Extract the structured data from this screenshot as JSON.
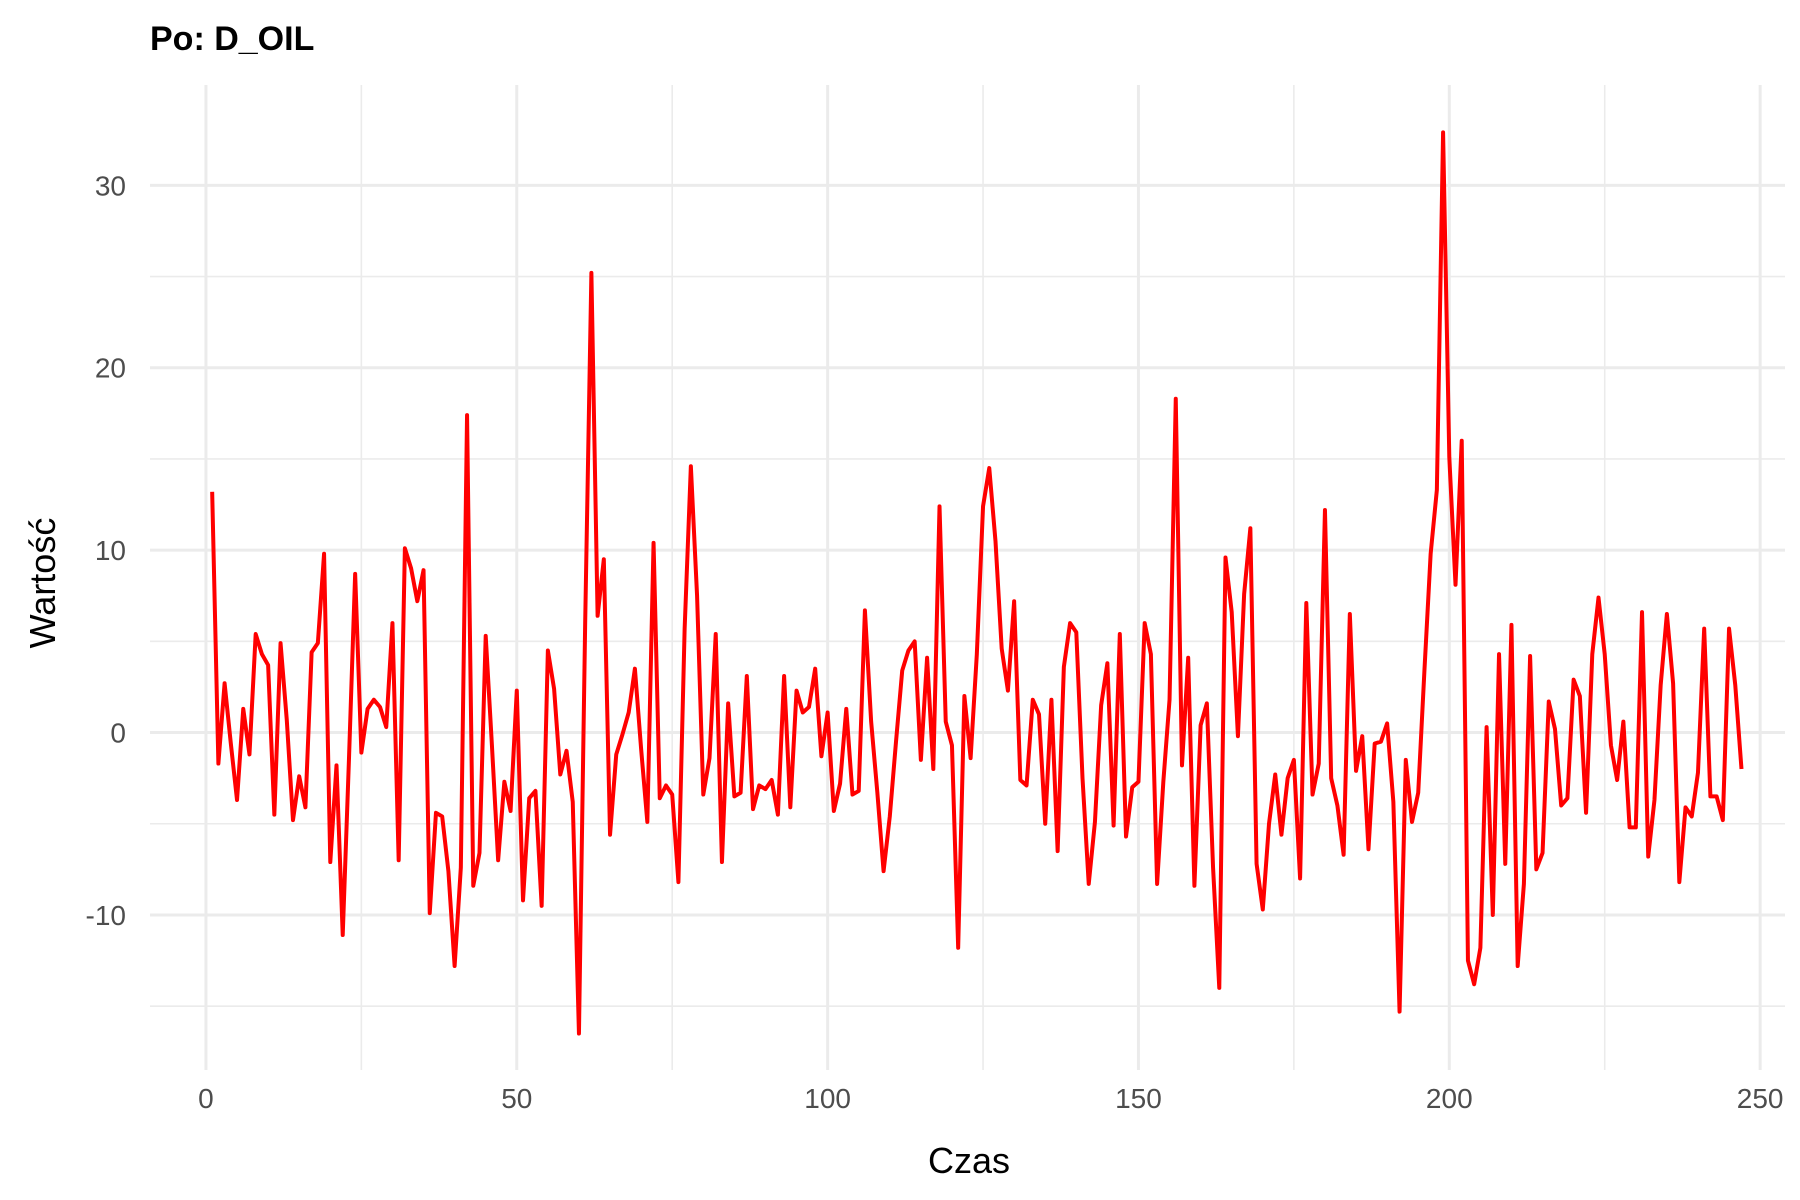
{
  "chart_data": {
    "type": "line",
    "title": "Po: D_OIL",
    "xlabel": "Czas",
    "ylabel": "Wartość",
    "xlim": [
      -9,
      254
    ],
    "ylim": [
      -18.5,
      35.5
    ],
    "x_ticks": [
      0,
      50,
      100,
      150,
      200,
      250
    ],
    "x_tick_labels": [
      "0",
      "50",
      "100",
      "150",
      "200",
      "250"
    ],
    "x_minor_ticks": [
      25,
      75,
      125,
      175,
      225
    ],
    "y_ticks": [
      -10,
      0,
      10,
      20,
      30
    ],
    "y_tick_labels": [
      "-10",
      "0",
      "10",
      "20",
      "30"
    ],
    "y_minor_ticks": [
      -15,
      -5,
      5,
      15,
      25
    ],
    "grid": true,
    "line_color": "#ff0000",
    "series": [
      {
        "values": [
          13.2,
          -1.7,
          2.7,
          -0.6,
          -3.7,
          1.3,
          -1.2,
          5.4,
          4.3,
          3.7,
          -4.5,
          4.9,
          0.7,
          -4.8,
          -2.4,
          -4.1,
          4.4,
          4.9,
          9.8,
          -7.1,
          -1.8,
          -11.1,
          -1.5,
          8.7,
          -1.1,
          1.3,
          1.8,
          1.4,
          0.3,
          6.0,
          -7.0,
          10.1,
          9.0,
          7.2,
          8.9,
          -9.9,
          -4.4,
          -4.6,
          -7.6,
          -12.8,
          -7.4,
          17.4,
          -8.4,
          -6.6,
          5.3,
          -0.7,
          -7.0,
          -2.7,
          -4.3,
          2.3,
          -9.2,
          -3.6,
          -3.2,
          -9.5,
          4.5,
          2.4,
          -2.3,
          -1.0,
          -3.8,
          -16.5,
          6.0,
          25.2,
          6.4,
          9.5,
          -5.6,
          -1.2,
          -0.1,
          1.1,
          3.5,
          -0.9,
          -4.9,
          10.4,
          -3.6,
          -2.9,
          -3.4,
          -8.2,
          5.7,
          14.6,
          7.5,
          -3.4,
          -1.4,
          5.4,
          -7.1,
          1.6,
          -3.5,
          -3.3,
          3.1,
          -4.2,
          -2.9,
          -3.1,
          -2.6,
          -4.5,
          3.1,
          -4.1,
          2.3,
          1.1,
          1.4,
          3.5,
          -1.3,
          1.1,
          -4.3,
          -2.8,
          1.3,
          -3.4,
          -3.2,
          6.7,
          0.6,
          -3.3,
          -7.6,
          -4.6,
          -0.5,
          3.4,
          4.5,
          5.0,
          -1.5,
          4.1,
          -2.0,
          12.4,
          0.6,
          -0.7,
          -11.8,
          2.0,
          -1.4,
          4.3,
          12.4,
          14.5,
          10.5,
          4.6,
          2.3,
          7.2,
          -2.6,
          -2.9,
          1.8,
          1.0,
          -5.0,
          1.8,
          -6.5,
          3.6,
          6.0,
          5.5,
          -2.5,
          -8.3,
          -4.9,
          1.5,
          3.8,
          -5.1,
          5.4,
          -5.7,
          -3.0,
          -2.7,
          6.0,
          4.3,
          -8.3,
          -2.7,
          1.8,
          18.3,
          -1.8,
          4.1,
          -8.4,
          0.4,
          1.6,
          -7.4,
          -14.0,
          9.6,
          6.6,
          -0.2,
          7.6,
          11.2,
          -7.2,
          -9.7,
          -5.0,
          -2.3,
          -5.6,
          -2.5,
          -1.5,
          -8.0,
          7.1,
          -3.4,
          -1.7,
          12.2,
          -2.5,
          -4.0,
          -6.7,
          6.5,
          -2.1,
          -0.2,
          -6.4,
          -0.6,
          -0.5,
          0.5,
          -3.8,
          -15.3,
          -1.5,
          -4.9,
          -3.3,
          3.4,
          9.8,
          13.3,
          32.9,
          15.1,
          8.1,
          16.0,
          -12.5,
          -13.8,
          -11.8,
          0.3,
          -10.0,
          4.3,
          -7.2,
          5.9,
          -12.8,
          -8.3,
          4.2,
          -7.5,
          -6.6,
          1.7,
          0.2,
          -4.0,
          -3.6,
          2.9,
          2.0,
          -4.4,
          4.3,
          7.4,
          4.3,
          -0.7,
          -2.6,
          0.6,
          -5.2,
          -5.2,
          6.6,
          -6.8,
          -3.7,
          2.6,
          6.5,
          2.7,
          -8.2,
          -4.1,
          -4.6,
          -2.2,
          5.7,
          -3.5,
          -3.5,
          -4.8,
          5.7,
          2.6,
          -2.0
        ]
      }
    ]
  }
}
